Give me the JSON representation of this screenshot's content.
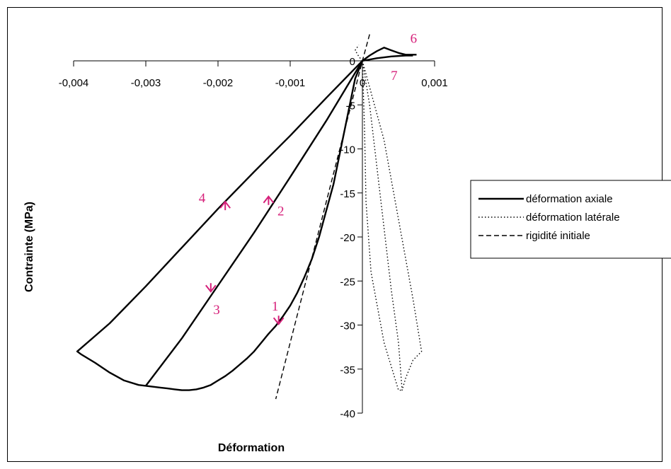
{
  "chart_data": {
    "type": "line",
    "title": "",
    "xlabel": "Déformation",
    "ylabel": "Contrainte (MPa)",
    "xlim": [
      -0.004,
      0.001
    ],
    "ylim": [
      -40,
      0
    ],
    "x_ticks": [
      {
        "value": -0.004,
        "label": "-0,004"
      },
      {
        "value": -0.003,
        "label": "-0,003"
      },
      {
        "value": -0.002,
        "label": "-0,002"
      },
      {
        "value": -0.001,
        "label": "-0,001"
      },
      {
        "value": 0,
        "label": "0"
      },
      {
        "value": 0.001,
        "label": "0,001"
      }
    ],
    "y_ticks": [
      {
        "value": 0,
        "label": "0"
      },
      {
        "value": -5,
        "label": "-5"
      },
      {
        "value": -10,
        "label": "-10"
      },
      {
        "value": -15,
        "label": "-15"
      },
      {
        "value": -20,
        "label": "-20"
      },
      {
        "value": -25,
        "label": "-25"
      },
      {
        "value": -30,
        "label": "-30"
      },
      {
        "value": -35,
        "label": "-35"
      },
      {
        "value": -40,
        "label": "-40"
      }
    ],
    "legend_position": "right",
    "series": [
      {
        "name": "déformation axiale",
        "style": "solid",
        "color": "#000000",
        "segments": [
          [
            [
              0,
              0
            ],
            [
              -0.0001,
              -2
            ],
            [
              -0.0002,
              -6
            ],
            [
              -0.0003,
              -10
            ],
            [
              -0.0004,
              -14
            ],
            [
              -0.0005,
              -17
            ],
            [
              -0.0006,
              -20
            ],
            [
              -0.0007,
              -22.5
            ],
            [
              -0.0008,
              -24.5
            ],
            [
              -0.0009,
              -26.3
            ],
            [
              -0.001,
              -27.8
            ],
            [
              -0.0011,
              -29
            ],
            [
              -0.0012,
              -30.1
            ],
            [
              -0.0013,
              -31
            ],
            [
              -0.0014,
              -32
            ],
            [
              -0.0015,
              -33
            ],
            [
              -0.0016,
              -33.8
            ],
            [
              -0.0017,
              -34.5
            ],
            [
              -0.0018,
              -35.2
            ],
            [
              -0.0019,
              -35.8
            ],
            [
              -0.002,
              -36.3
            ],
            [
              -0.0021,
              -36.8
            ],
            [
              -0.0022,
              -37.1
            ],
            [
              -0.0023,
              -37.3
            ],
            [
              -0.0024,
              -37.4
            ],
            [
              -0.0025,
              -37.4
            ],
            [
              -0.0026,
              -37.3
            ],
            [
              -0.0027,
              -37.2
            ],
            [
              -0.0028,
              -37.1
            ],
            [
              -0.0029,
              -37
            ],
            [
              -0.003,
              -36.9
            ]
          ],
          [
            [
              -0.003,
              -36.9
            ],
            [
              -0.0025,
              -31.5
            ],
            [
              -0.002,
              -25.5
            ],
            [
              -0.0015,
              -19.5
            ],
            [
              -0.001,
              -13.2
            ],
            [
              -0.0005,
              -6.8
            ],
            [
              0,
              0
            ]
          ],
          [
            [
              0,
              0
            ],
            [
              -0.0005,
              -4.2
            ],
            [
              -0.001,
              -8.5
            ],
            [
              -0.0015,
              -12.6
            ],
            [
              -0.002,
              -16.8
            ],
            [
              -0.0025,
              -21.2
            ],
            [
              -0.003,
              -25.6
            ],
            [
              -0.0035,
              -29.8
            ],
            [
              -0.00395,
              -33
            ],
            [
              -0.0039,
              -33.3
            ],
            [
              -0.0037,
              -34.3
            ],
            [
              -0.0035,
              -35.4
            ],
            [
              -0.0033,
              -36.3
            ],
            [
              -0.0031,
              -36.8
            ],
            [
              -0.003,
              -36.9
            ]
          ],
          [
            [
              0,
              0
            ],
            [
              0.0001,
              0.6
            ],
            [
              0.0002,
              1.1
            ],
            [
              0.0003,
              1.5
            ],
            [
              0.0004,
              1.2
            ],
            [
              0.0005,
              0.9
            ],
            [
              0.0006,
              0.7
            ],
            [
              0.0007,
              0.7
            ],
            [
              0.00075,
              0.7
            ]
          ],
          [
            [
              0,
              0
            ],
            [
              0.0002,
              0.3
            ],
            [
              0.0004,
              0.5
            ],
            [
              0.0006,
              0.6
            ],
            [
              0.0007,
              0.6
            ]
          ]
        ]
      },
      {
        "name": "déformation latérale",
        "style": "dotted",
        "color": "#000000",
        "segments": [
          [
            [
              0,
              0
            ],
            [
              0.0001,
              -5
            ],
            [
              0.0002,
              -12
            ],
            [
              0.0003,
              -19
            ],
            [
              0.0004,
              -26
            ],
            [
              0.0005,
              -32
            ],
            [
              0.00055,
              -37.4
            ],
            [
              0.0006,
              -36
            ],
            [
              0.0007,
              -34
            ],
            [
              0.00082,
              -33
            ],
            [
              0.0007,
              -27
            ],
            [
              0.0005,
              -18
            ],
            [
              0.0003,
              -9
            ],
            [
              0.0001,
              -3
            ],
            [
              0,
              0
            ]
          ],
          [
            [
              0,
              0
            ],
            [
              3e-05,
              -8
            ],
            [
              5e-05,
              -16
            ],
            [
              0.00012,
              -24
            ],
            [
              0.0003,
              -32
            ],
            [
              0.0005,
              -37.4
            ],
            [
              0.00055,
              -37.4
            ]
          ],
          [
            [
              0,
              0
            ],
            [
              -5e-05,
              0.5
            ],
            [
              -0.0001,
              1.2
            ],
            [
              -5e-05,
              1.8
            ]
          ]
        ]
      },
      {
        "name": "rigidité initiale",
        "style": "dashed",
        "color": "#000000",
        "segments": [
          [
            [
              0.0001,
              3
            ],
            [
              0,
              0
            ],
            [
              -0.0005,
              -16
            ],
            [
              -0.001,
              -32
            ],
            [
              -0.0012,
              -38.4
            ]
          ]
        ]
      }
    ],
    "annotations": [
      {
        "label": "1",
        "x": -0.00121,
        "y": -27.8
      },
      {
        "label": "2",
        "x": -0.00113,
        "y": -17
      },
      {
        "label": "3",
        "x": -0.00202,
        "y": -28.2
      },
      {
        "label": "4",
        "x": -0.00222,
        "y": -15.5
      },
      {
        "label": "6",
        "x": 0.00071,
        "y": 2.6
      },
      {
        "label": "7",
        "x": 0.00044,
        "y": -1.6
      }
    ],
    "arrows": [
      {
        "x": -0.00116,
        "y": -29.5,
        "dir": "down"
      },
      {
        "x": -0.0013,
        "y": -15.8,
        "dir": "up"
      },
      {
        "x": -0.0021,
        "y": -25.8,
        "dir": "down"
      },
      {
        "x": -0.0019,
        "y": -16.4,
        "dir": "up"
      }
    ],
    "annotation_color": "#d6207a"
  }
}
